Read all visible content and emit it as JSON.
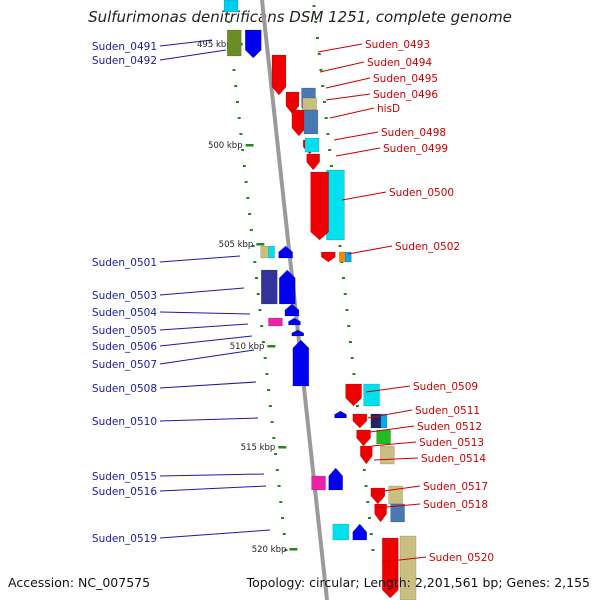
{
  "title": "Sulfurimonas denitrificans DSM 1251, complete genome",
  "footer": {
    "accession": "Accession: NC_007575",
    "summary": "Topology: circular; Length: 2,201,561 bp; Genes: 2,155"
  },
  "colors": {
    "backbone": "#9a9a9a",
    "forward_label": "#cc0000",
    "reverse_label": "#1a1aa6",
    "tick": "#1e8a1e"
  },
  "chart_data": {
    "type": "genome_map",
    "kbp_ticks": [
      "495 kbp",
      "500 kbp",
      "505 kbp",
      "510 kbp",
      "515 kbp",
      "520 kbp"
    ],
    "forward_genes": [
      "Suden_0493",
      "Suden_0494",
      "Suden_0495",
      "Suden_0496",
      "hisD",
      "Suden_0498",
      "Suden_0499",
      "Suden_0500",
      "Suden_0502",
      "Suden_0509",
      "Suden_0511",
      "Suden_0512",
      "Suden_0513",
      "Suden_0514",
      "Suden_0517",
      "Suden_0518",
      "Suden_0520"
    ],
    "reverse_genes": [
      "Suden_0491",
      "Suden_0492",
      "Suden_0501",
      "Suden_0503",
      "Suden_0504",
      "Suden_0505",
      "Suden_0506",
      "Suden_0507",
      "Suden_0508",
      "Suden_0510",
      "Suden_0515",
      "Suden_0516",
      "Suden_0519"
    ]
  }
}
